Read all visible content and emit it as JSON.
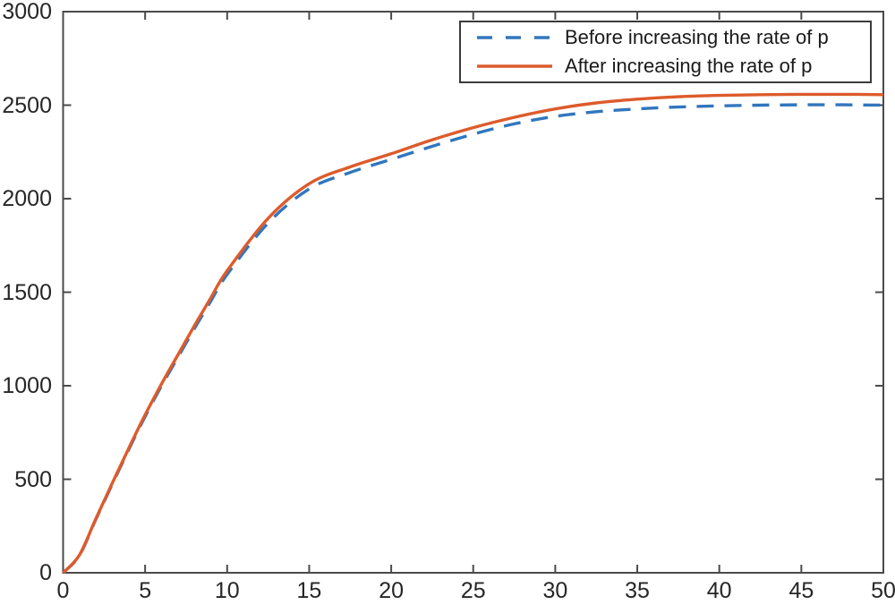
{
  "figure": {
    "background": "#ffffff",
    "axis_color": "#4a4a4a",
    "tick_label_color": "#262626"
  },
  "legend": {
    "position": "top-right",
    "border_color": "#3b3b3b"
  },
  "chart_data": {
    "type": "line",
    "title": "",
    "xlabel": "",
    "ylabel": "",
    "xlim": [
      0,
      50
    ],
    "ylim": [
      0,
      3000
    ],
    "xticks": [
      0,
      5,
      10,
      15,
      20,
      25,
      30,
      35,
      40,
      45,
      50
    ],
    "yticks": [
      0,
      500,
      1000,
      1500,
      2000,
      2500,
      3000
    ],
    "grid": false,
    "legend_position": "top-right",
    "x": [
      0,
      1,
      2,
      3,
      4,
      5,
      6,
      7,
      8,
      9,
      10,
      12.5,
      15,
      17.5,
      20,
      22.5,
      25,
      27.5,
      30,
      32.5,
      35,
      37.5,
      40,
      42.5,
      45,
      47.5,
      50
    ],
    "series": [
      {
        "name": "Before increasing the rate of p",
        "color": "#3176bd",
        "style": "dashed",
        "values": [
          0,
          93,
          286,
          474,
          658,
          836,
          1000,
          1152,
          1305,
          1452,
          1595,
          1870,
          2052,
          2140,
          2210,
          2280,
          2345,
          2400,
          2440,
          2465,
          2480,
          2490,
          2496,
          2500,
          2502,
          2502,
          2500
        ]
      },
      {
        "name": "After increasing the rate of p",
        "color": "#dd5b2b",
        "style": "solid",
        "values": [
          0,
          95,
          290,
          480,
          665,
          845,
          1010,
          1165,
          1320,
          1470,
          1615,
          1895,
          2080,
          2170,
          2240,
          2315,
          2380,
          2435,
          2480,
          2512,
          2532,
          2545,
          2552,
          2556,
          2558,
          2558,
          2556
        ]
      }
    ]
  }
}
